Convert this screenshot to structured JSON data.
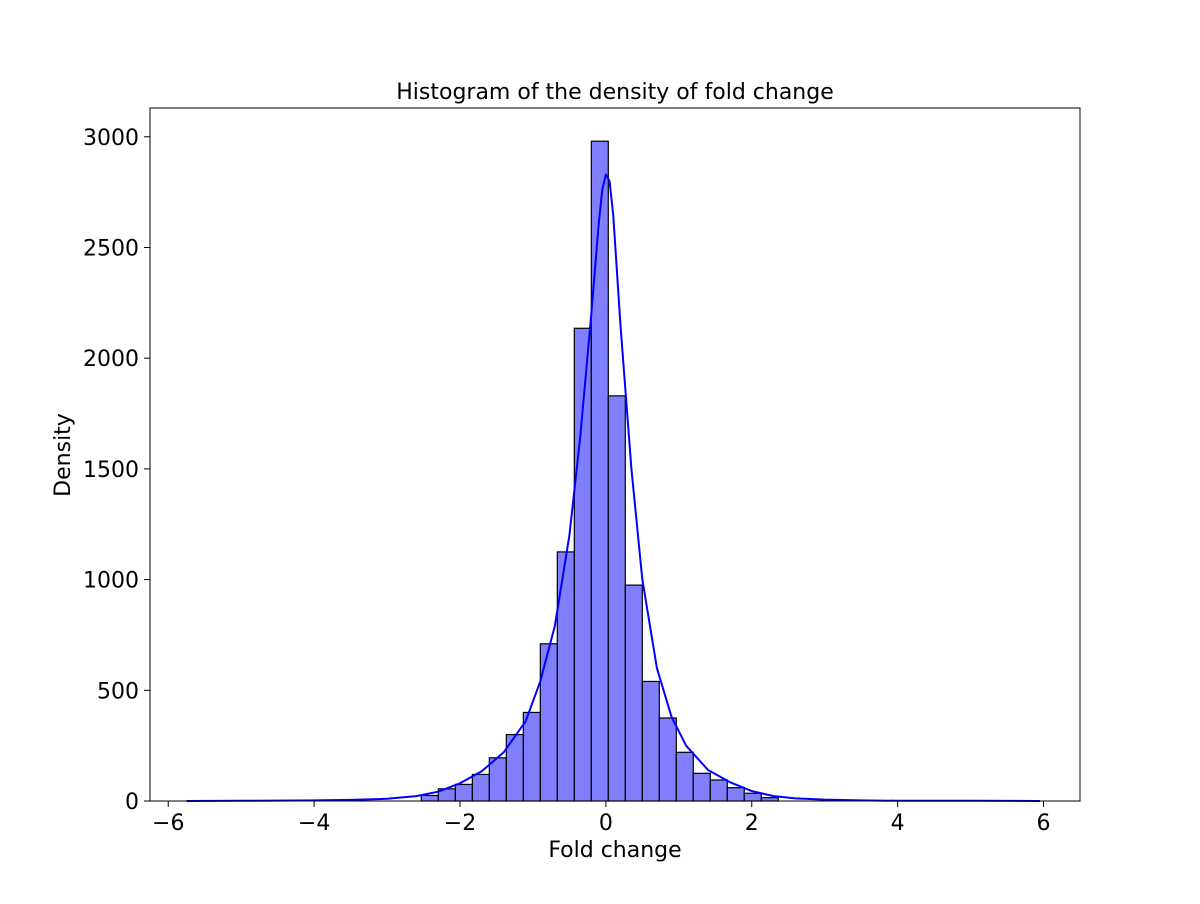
{
  "chart_data": {
    "type": "bar",
    "title": "Histogram of the density of fold change",
    "xlabel": "Fold change",
    "ylabel": "Density",
    "xlim": [
      -6.25,
      6.5
    ],
    "ylim": [
      0,
      3130
    ],
    "xticks": [
      -6,
      -4,
      -2,
      0,
      2,
      4,
      6
    ],
    "yticks": [
      0,
      500,
      1000,
      1500,
      2000,
      2500,
      3000
    ],
    "grid": false,
    "legend": "none",
    "bin_width": 0.233,
    "bins_left_edge": [
      -2.53,
      -2.297,
      -2.064,
      -1.831,
      -1.598,
      -1.365,
      -1.132,
      -0.899,
      -0.666,
      -0.433,
      -0.2,
      0.033,
      0.266,
      0.499,
      0.732,
      0.965,
      1.198,
      1.431,
      1.664,
      1.897,
      2.13
    ],
    "bins": [
      {
        "x0": -2.53,
        "value": 25
      },
      {
        "x0": -2.297,
        "value": 55
      },
      {
        "x0": -2.064,
        "value": 75
      },
      {
        "x0": -1.831,
        "value": 120
      },
      {
        "x0": -1.598,
        "value": 195
      },
      {
        "x0": -1.365,
        "value": 300
      },
      {
        "x0": -1.132,
        "value": 400
      },
      {
        "x0": -0.899,
        "value": 710
      },
      {
        "x0": -0.666,
        "value": 1125
      },
      {
        "x0": -0.433,
        "value": 2135
      },
      {
        "x0": -0.2,
        "value": 2980
      },
      {
        "x0": 0.033,
        "value": 1830
      },
      {
        "x0": 0.266,
        "value": 975
      },
      {
        "x0": 0.499,
        "value": 540
      },
      {
        "x0": 0.732,
        "value": 375
      },
      {
        "x0": 0.965,
        "value": 220
      },
      {
        "x0": 1.198,
        "value": 125
      },
      {
        "x0": 1.431,
        "value": 95
      },
      {
        "x0": 1.664,
        "value": 60
      },
      {
        "x0": 1.897,
        "value": 35
      },
      {
        "x0": 2.13,
        "value": 15
      }
    ],
    "kde": {
      "x": [
        -5.75,
        -5.0,
        -4.0,
        -3.5,
        -3.0,
        -2.6,
        -2.3,
        -2.0,
        -1.7,
        -1.4,
        -1.1,
        -0.9,
        -0.7,
        -0.5,
        -0.35,
        -0.2,
        -0.1,
        -0.05,
        0.0,
        0.05,
        0.1,
        0.2,
        0.35,
        0.5,
        0.7,
        0.9,
        1.1,
        1.4,
        1.7,
        2.0,
        2.3,
        2.6,
        3.0,
        3.5,
        4.0,
        5.0,
        5.95
      ],
      "y": [
        0,
        1,
        3,
        5,
        10,
        22,
        42,
        80,
        135,
        220,
        360,
        540,
        790,
        1200,
        1650,
        2200,
        2600,
        2760,
        2830,
        2800,
        2650,
        2150,
        1500,
        1000,
        600,
        380,
        250,
        140,
        85,
        45,
        22,
        12,
        6,
        3,
        1,
        1,
        0
      ]
    },
    "colors": {
      "bar_fill": "#8080ff",
      "bar_edge": "#000000",
      "kde_line": "#0000ff",
      "axes": "#000000"
    }
  }
}
